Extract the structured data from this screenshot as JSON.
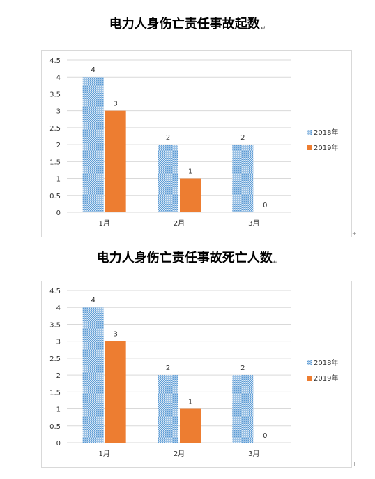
{
  "charts": [
    {
      "title": "电力人身伤亡责任事故起数",
      "mark": "↵"
    },
    {
      "title": "电力人身伤亡责任事故死亡人数",
      "mark": "↵"
    }
  ],
  "cursor_marks": [
    "+",
    "+"
  ],
  "colors": {
    "series_2018": "#5b9bd5",
    "series_2019": "#ed7d31",
    "grid": "#d9d9d9"
  },
  "chart_data": [
    {
      "type": "bar",
      "title": "电力人身伤亡责任事故起数",
      "categories": [
        "1月",
        "2月",
        "3月"
      ],
      "series": [
        {
          "name": "2018年",
          "values": [
            4,
            2,
            2
          ]
        },
        {
          "name": "2019年",
          "values": [
            3,
            1,
            0
          ]
        }
      ],
      "ylim": [
        0,
        4.5
      ],
      "yticks": [
        "0",
        "0.5",
        "1",
        "1.5",
        "2",
        "2.5",
        "3",
        "3.5",
        "4",
        "4.5"
      ],
      "grid": true,
      "legend": "right"
    },
    {
      "type": "bar",
      "title": "电力人身伤亡责任事故死亡人数",
      "categories": [
        "1月",
        "2月",
        "3月"
      ],
      "series": [
        {
          "name": "2018年",
          "values": [
            4,
            2,
            2
          ]
        },
        {
          "name": "2019年",
          "values": [
            3,
            1,
            0
          ]
        }
      ],
      "ylim": [
        0,
        4.5
      ],
      "yticks": [
        "0",
        "0.5",
        "1",
        "1.5",
        "2",
        "2.5",
        "3",
        "3.5",
        "4",
        "4.5"
      ],
      "grid": true,
      "legend": "right"
    }
  ]
}
